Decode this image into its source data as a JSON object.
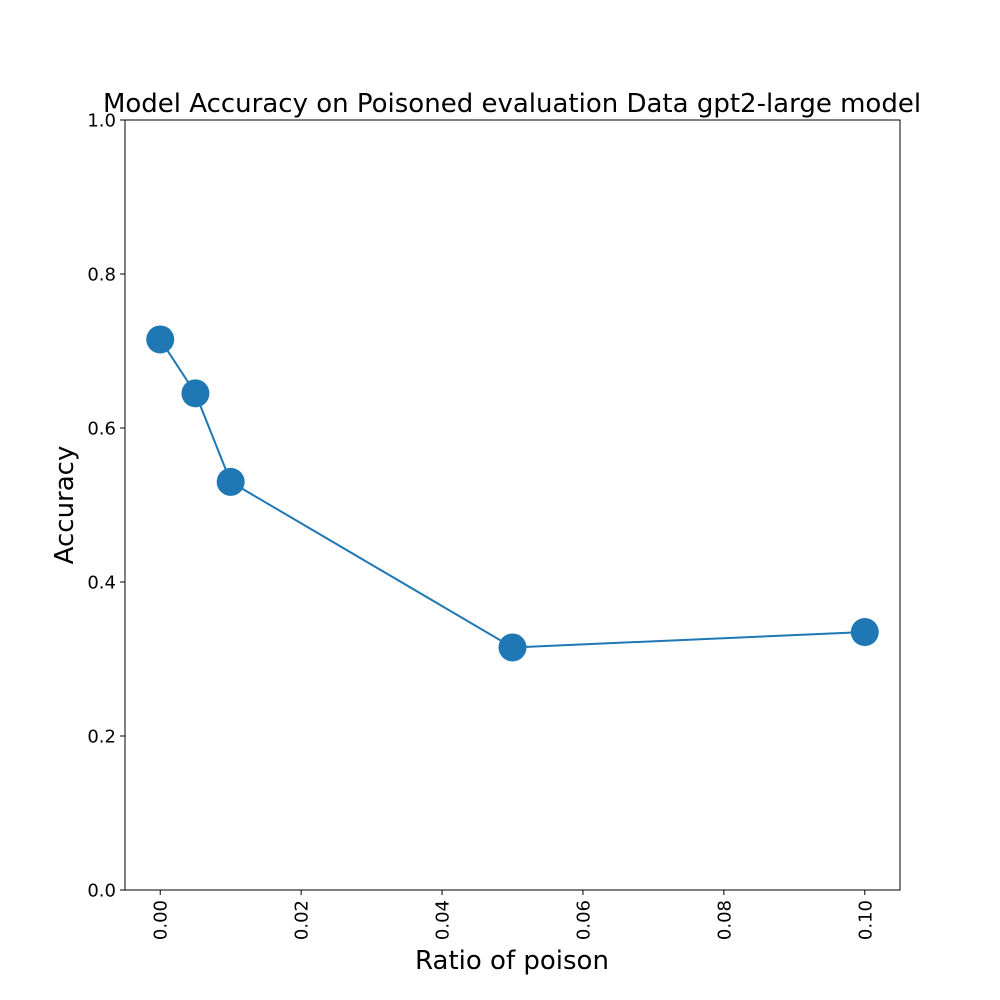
{
  "chart_data": {
    "type": "line",
    "title": "Model Accuracy on Poisoned evaluation Data gpt2-large model",
    "xlabel": "Ratio of poison",
    "ylabel": "Accuracy",
    "xlim": [
      -0.005,
      0.105
    ],
    "ylim": [
      0.0,
      1.0
    ],
    "xticks": [
      0.0,
      0.02,
      0.04,
      0.06,
      0.08,
      0.1
    ],
    "xtick_labels": [
      "0.00",
      "0.02",
      "0.04",
      "0.06",
      "0.08",
      "0.10"
    ],
    "yticks": [
      0.0,
      0.2,
      0.4,
      0.6,
      0.8,
      1.0
    ],
    "ytick_labels": [
      "0.0",
      "0.2",
      "0.4",
      "0.6",
      "0.8",
      "1.0"
    ],
    "grid": false,
    "series": [
      {
        "color": "#1f77b4",
        "marker": "circle",
        "x": [
          0.0,
          0.005,
          0.01,
          0.05,
          0.1
        ],
        "y": [
          0.715,
          0.645,
          0.53,
          0.315,
          0.335
        ]
      }
    ]
  }
}
